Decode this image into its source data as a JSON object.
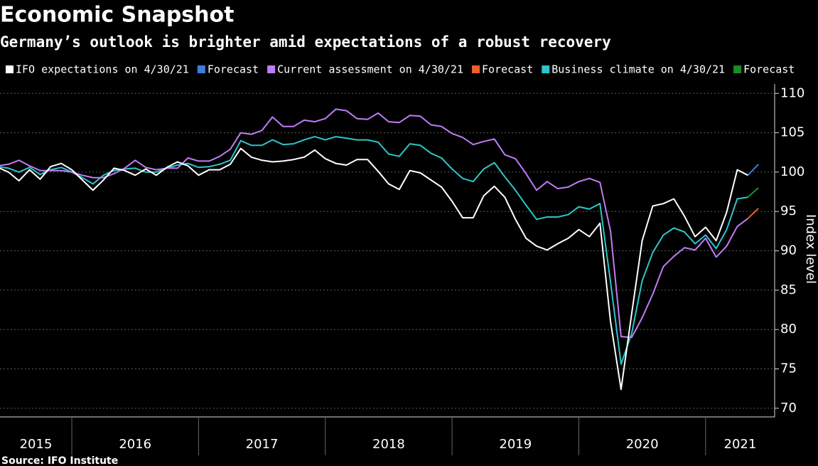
{
  "chart_data": {
    "type": "line",
    "title": "Economic Snapshot",
    "subtitle": "Germany’s outlook is brighter amid expectations of a robust recovery",
    "source": "Source: IFO Institute",
    "y_label": "Index level",
    "x": [
      "2015-05",
      "2015-06",
      "2015-07",
      "2015-08",
      "2015-09",
      "2015-10",
      "2015-11",
      "2015-12",
      "2016-01",
      "2016-02",
      "2016-03",
      "2016-04",
      "2016-05",
      "2016-06",
      "2016-07",
      "2016-08",
      "2016-09",
      "2016-10",
      "2016-11",
      "2016-12",
      "2017-01",
      "2017-02",
      "2017-03",
      "2017-04",
      "2017-05",
      "2017-06",
      "2017-07",
      "2017-08",
      "2017-09",
      "2017-10",
      "2017-11",
      "2017-12",
      "2018-01",
      "2018-02",
      "2018-03",
      "2018-04",
      "2018-05",
      "2018-06",
      "2018-07",
      "2018-08",
      "2018-09",
      "2018-10",
      "2018-11",
      "2018-12",
      "2019-01",
      "2019-02",
      "2019-03",
      "2019-04",
      "2019-05",
      "2019-06",
      "2019-07",
      "2019-08",
      "2019-09",
      "2019-10",
      "2019-11",
      "2019-12",
      "2020-01",
      "2020-02",
      "2020-03",
      "2020-04",
      "2020-05",
      "2020-06",
      "2020-07",
      "2020-08",
      "2020-09",
      "2020-10",
      "2020-11",
      "2020-12",
      "2021-01",
      "2021-02",
      "2021-03",
      "2021-04"
    ],
    "xlim": [
      "2015-05",
      "2021-06"
    ],
    "xticks": [
      2015,
      2016,
      2017,
      2018,
      2019,
      2020,
      2021
    ],
    "ylim": [
      68.9,
      111.2
    ],
    "yticks": [
      70,
      75,
      80,
      85,
      90,
      95,
      100,
      105,
      110
    ],
    "grid": true,
    "series": [
      {
        "name": "IFO expectations on 4/30/21",
        "color": "#ffffff",
        "values": [
          100.6,
          100.0,
          98.9,
          100.3,
          99.1,
          100.7,
          101.1,
          100.3,
          99.0,
          97.7,
          99.0,
          100.5,
          100.2,
          99.6,
          100.4,
          99.6,
          100.6,
          101.3,
          100.8,
          99.6,
          100.3,
          100.3,
          101.0,
          103.0,
          101.9,
          101.5,
          101.3,
          101.4,
          101.6,
          101.9,
          102.8,
          101.7,
          101.1,
          100.9,
          101.6,
          101.6,
          100.1,
          98.5,
          97.8,
          100.2,
          99.9,
          99.0,
          98.1,
          96.3,
          94.2,
          94.2,
          97.0,
          98.2,
          96.8,
          94.0,
          91.6,
          90.6,
          90.1,
          90.9,
          91.6,
          92.7,
          91.8,
          93.5,
          81.0,
          72.4,
          82.0,
          91.3,
          95.7,
          96.0,
          96.6,
          94.4,
          91.8,
          93.0,
          91.3,
          94.9,
          100.3,
          99.6
        ]
      },
      {
        "name": "Forecast",
        "color": "#3a7fdc",
        "x": [
          "2021-04",
          "2021-05"
        ],
        "values": [
          99.6,
          101.0
        ]
      },
      {
        "name": "Current assessment on 4/30/21",
        "color": "#c07cf4",
        "values": [
          100.8,
          101.0,
          101.5,
          100.8,
          100.2,
          100.2,
          100.2,
          100.0,
          99.6,
          99.3,
          99.3,
          99.8,
          100.5,
          101.5,
          100.6,
          100.3,
          100.5,
          100.5,
          101.8,
          101.4,
          101.4,
          102.0,
          102.9,
          105.0,
          104.8,
          105.3,
          107.0,
          105.8,
          105.8,
          106.6,
          106.4,
          106.8,
          108.0,
          107.8,
          106.8,
          106.7,
          107.5,
          106.4,
          106.3,
          107.2,
          107.1,
          106.0,
          105.8,
          104.9,
          104.4,
          103.5,
          103.9,
          104.2,
          102.2,
          101.7,
          99.8,
          97.7,
          98.8,
          97.9,
          98.1,
          98.8,
          99.2,
          98.7,
          92.5,
          79.1,
          79.0,
          81.5,
          84.5,
          88.0,
          89.3,
          90.4,
          90.1,
          91.6,
          89.2,
          90.6,
          93.1,
          94.1
        ]
      },
      {
        "name": "Forecast",
        "color": "#f0602a",
        "x": [
          "2021-04",
          "2021-05"
        ],
        "values": [
          94.1,
          95.4
        ]
      },
      {
        "name": "Business climate on 4/30/21",
        "color": "#2cc6c8",
        "values": [
          100.7,
          100.5,
          100.0,
          100.6,
          99.7,
          100.3,
          100.6,
          100.0,
          99.3,
          98.5,
          99.6,
          100.2,
          100.4,
          100.5,
          100.0,
          100.0,
          100.5,
          100.9,
          101.1,
          100.6,
          100.7,
          101.0,
          101.5,
          104.0,
          103.4,
          103.4,
          104.1,
          103.5,
          103.6,
          104.1,
          104.5,
          104.1,
          104.5,
          104.3,
          104.1,
          104.1,
          103.8,
          102.3,
          102.0,
          103.6,
          103.4,
          102.4,
          101.8,
          100.4,
          99.2,
          98.8,
          100.4,
          101.2,
          99.4,
          97.7,
          95.8,
          94.0,
          94.3,
          94.3,
          94.6,
          95.6,
          95.3,
          96.0,
          86.0,
          75.6,
          79.5,
          86.2,
          89.8,
          92.0,
          92.9,
          92.4,
          90.9,
          92.0,
          90.3,
          92.7,
          96.6,
          96.8
        ]
      },
      {
        "name": "Forecast",
        "color": "#1e8a2e",
        "x": [
          "2021-04",
          "2021-05"
        ],
        "values": [
          96.8,
          98.0
        ]
      }
    ]
  }
}
